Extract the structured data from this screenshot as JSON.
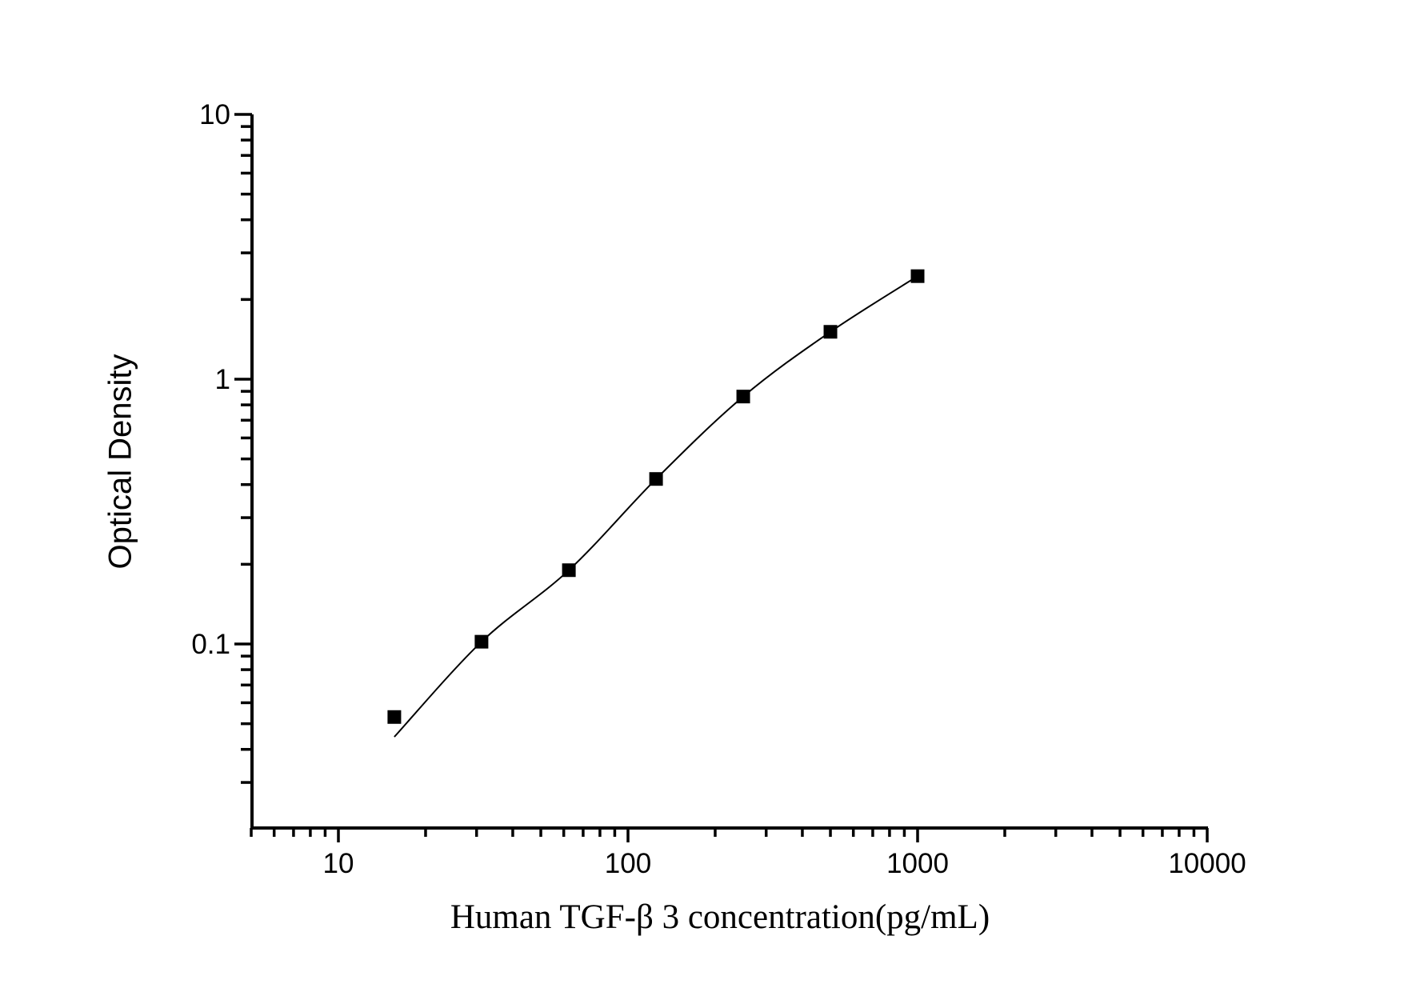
{
  "figure": {
    "background_color": "#ffffff",
    "axis_color": "#000000",
    "text_color": "#000000"
  },
  "chart_data": {
    "type": "scatter",
    "title": "",
    "xlabel": "Human TGF-β 3 concentration(pg/mL)",
    "ylabel": "Optical Density",
    "x_scale": "log",
    "y_scale": "log",
    "xlim": [
      5,
      10000
    ],
    "ylim": [
      0.02,
      10
    ],
    "grid": false,
    "legend": null,
    "x_major_ticks": [
      10,
      100,
      1000,
      10000
    ],
    "x_major_tick_labels": [
      "10",
      "100",
      "1000",
      "10000"
    ],
    "x_minor_ticks": [
      5,
      6,
      7,
      8,
      9,
      20,
      30,
      40,
      50,
      60,
      70,
      80,
      90,
      200,
      300,
      400,
      500,
      600,
      700,
      800,
      900,
      2000,
      3000,
      4000,
      5000,
      6000,
      7000,
      8000,
      9000
    ],
    "y_major_ticks": [
      0.1,
      1,
      10
    ],
    "y_major_tick_labels": [
      "0.1",
      "1",
      "10"
    ],
    "y_minor_ticks": [
      0.03,
      0.04,
      0.05,
      0.06,
      0.07,
      0.08,
      0.09,
      0.2,
      0.3,
      0.4,
      0.5,
      0.6,
      0.7,
      0.8,
      0.9,
      2,
      3,
      4,
      5,
      6,
      7,
      8,
      9
    ],
    "series": [
      {
        "name": "standard-points",
        "role": "markers",
        "marker": "square",
        "color": "#000000",
        "x": [
          15.6,
          31.2,
          62.5,
          125,
          250,
          500,
          1000
        ],
        "y": [
          0.053,
          0.102,
          0.19,
          0.42,
          0.86,
          1.51,
          2.45
        ]
      },
      {
        "name": "fitted-curve",
        "role": "line",
        "marker": "none",
        "color": "#000000",
        "x": [
          15.6,
          31.2,
          62.5,
          125,
          250,
          500,
          1000
        ],
        "y": [
          0.0446,
          0.102,
          0.19,
          0.42,
          0.86,
          1.51,
          2.45
        ]
      }
    ]
  }
}
